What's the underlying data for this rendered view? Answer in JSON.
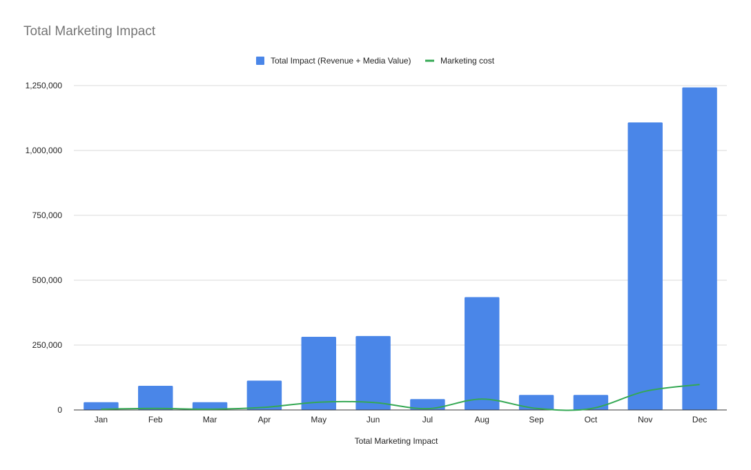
{
  "chart_data": {
    "type": "bar",
    "title": "Total Marketing Impact",
    "xlabel": "Total Marketing Impact",
    "ylabel": "",
    "categories": [
      "Jan",
      "Feb",
      "Mar",
      "Apr",
      "May",
      "Jun",
      "Jul",
      "Aug",
      "Sep",
      "Oct",
      "Nov",
      "Dec"
    ],
    "ylim": [
      0,
      1250000
    ],
    "yticks": [
      0,
      250000,
      500000,
      750000,
      1000000,
      1250000
    ],
    "ytick_labels": [
      "0",
      "250,000",
      "500,000",
      "750,000",
      "1,000,000",
      "1,250,000"
    ],
    "grid": true,
    "legend_position": "top",
    "series": [
      {
        "name": "Total Impact (Revenue + Media Value)",
        "type": "bar",
        "color": "#4a86e8",
        "values": [
          30000,
          93000,
          30000,
          113000,
          282000,
          285000,
          42000,
          435000,
          58000,
          58000,
          1108000,
          1243000
        ]
      },
      {
        "name": "Marketing cost",
        "type": "line",
        "color": "#34a853",
        "values": [
          3000,
          6000,
          3000,
          10000,
          30000,
          29000,
          5000,
          42000,
          6000,
          5000,
          72000,
          98000
        ]
      }
    ]
  }
}
